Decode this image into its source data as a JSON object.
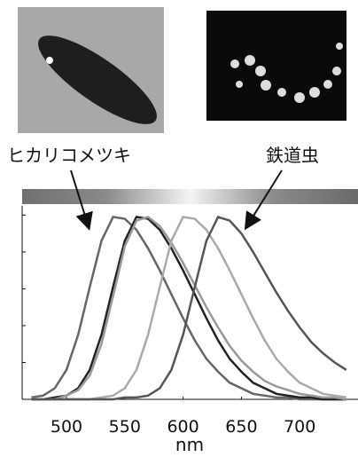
{
  "chart_data": {
    "type": "line",
    "annotations": [
      "ヒカリコメツキ",
      "鉄道虫"
    ],
    "xlabel": "nm",
    "x": [
      470,
      480,
      490,
      500,
      510,
      520,
      530,
      540,
      550,
      560,
      570,
      580,
      590,
      600,
      610,
      620,
      630,
      640,
      650,
      660,
      670,
      680,
      690,
      700,
      710,
      720,
      730,
      740
    ],
    "series": [
      {
        "color": "#666666",
        "values": [
          0.01,
          0.02,
          0.06,
          0.16,
          0.35,
          0.61,
          0.86,
          0.99,
          0.98,
          0.92,
          0.82,
          0.7,
          0.57,
          0.44,
          0.32,
          0.22,
          0.15,
          0.09,
          0.06,
          0.03,
          0.02,
          0.01,
          0.01,
          0,
          0,
          0,
          0,
          0
        ]
      },
      {
        "color": "#222222",
        "values": [
          0,
          0,
          0.01,
          0.02,
          0.06,
          0.16,
          0.35,
          0.61,
          0.86,
          0.99,
          0.98,
          0.92,
          0.82,
          0.7,
          0.57,
          0.44,
          0.32,
          0.22,
          0.15,
          0.09,
          0.06,
          0.03,
          0.02,
          0.01,
          0.01,
          0,
          0,
          0
        ]
      },
      {
        "color": "#999999",
        "values": [
          0,
          0,
          0,
          0.02,
          0.05,
          0.13,
          0.3,
          0.56,
          0.83,
          0.97,
          0.99,
          0.94,
          0.85,
          0.74,
          0.62,
          0.5,
          0.39,
          0.29,
          0.21,
          0.15,
          0.1,
          0.07,
          0.05,
          0.03,
          0.02,
          0.01,
          0.01,
          0
        ]
      },
      {
        "color": "#aaaaaa",
        "values": [
          0,
          0,
          0,
          0,
          0,
          0,
          0.01,
          0.02,
          0.06,
          0.16,
          0.35,
          0.61,
          0.86,
          0.99,
          0.98,
          0.92,
          0.82,
          0.7,
          0.57,
          0.44,
          0.32,
          0.22,
          0.15,
          0.09,
          0.06,
          0.03,
          0.02,
          0.01
        ]
      },
      {
        "color": "#555555",
        "values": [
          0,
          0,
          0,
          0,
          0,
          0,
          0,
          0,
          0.01,
          0.01,
          0.02,
          0.06,
          0.16,
          0.35,
          0.61,
          0.86,
          0.99,
          0.97,
          0.9,
          0.8,
          0.69,
          0.58,
          0.48,
          0.39,
          0.31,
          0.25,
          0.2,
          0.16
        ]
      }
    ],
    "xlim": [
      462,
      750
    ],
    "xticks": [
      500,
      550,
      600,
      650,
      700
    ],
    "ylim": [
      0,
      1.05
    ],
    "yticks": [
      0,
      0.2,
      0.4,
      0.6,
      0.8,
      1.0
    ]
  }
}
